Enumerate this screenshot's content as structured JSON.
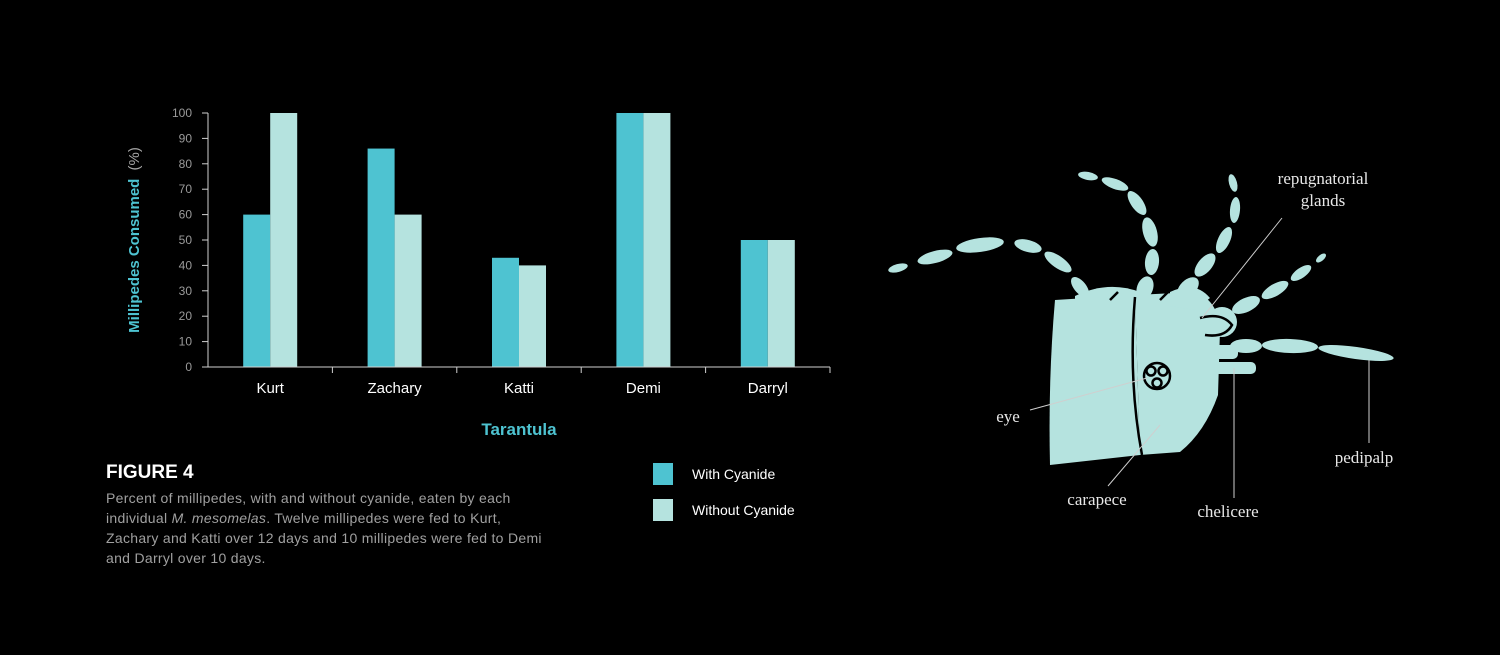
{
  "chart_data": {
    "type": "bar",
    "categories": [
      "Kurt",
      "Zachary",
      "Katti",
      "Demi",
      "Darryl"
    ],
    "series": [
      {
        "name": "With Cyanide",
        "values": [
          60,
          86,
          43,
          100,
          50
        ],
        "color": "#4ec3d1"
      },
      {
        "name": "Without Cyanide",
        "values": [
          100,
          60,
          40,
          100,
          50
        ],
        "color": "#b5e3df"
      }
    ],
    "xlabel": "Tarantula",
    "ylabel": "Millipedes Consumed",
    "ylabel_unit": "(%)",
    "ylim": [
      0,
      100
    ],
    "yticks": [
      0,
      10,
      20,
      30,
      40,
      50,
      60,
      70,
      80,
      90,
      100
    ],
    "grid": false,
    "legend_position": "bottom-right"
  },
  "caption": {
    "title": "FIGURE 4",
    "text_before": "Percent of millipedes, with and without cyanide, eaten by each individual ",
    "species": "M. mesomelas",
    "text_after": ". Twelve millipedes were fed to Kurt, Zachary and Katti over 12 days and 10 millipedes were fed to Demi and Darryl over 10 days."
  },
  "legend": {
    "with_label": "With Cyanide",
    "without_label": "Without Cyanide",
    "with_color": "#4ec3d1",
    "without_color": "#b5e3df"
  },
  "anatomy": {
    "labels": {
      "repugnatorial_1": "repugnatorial",
      "repugnatorial_2": "glands",
      "eye": "eye",
      "carapece": "carapece",
      "chelicere": "chelicere",
      "pedipalp": "pedipalp"
    },
    "body_color": "#b5e3df"
  }
}
